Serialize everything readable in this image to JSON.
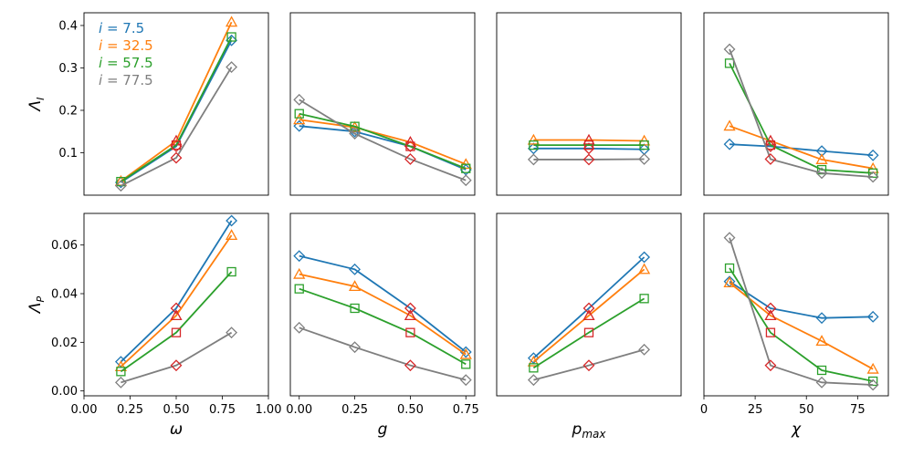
{
  "chart_data": {
    "type": "line",
    "legend": {
      "placement": "top-left",
      "entries": [
        {
          "var": "i",
          "eq": " = ",
          "value": "7.5",
          "color": "#1f77b4"
        },
        {
          "var": "i",
          "eq": " = ",
          "value": "32.5",
          "color": "#ff7f0e"
        },
        {
          "var": "i",
          "eq": " = ",
          "value": "57.5",
          "color": "#2ca02c"
        },
        {
          "var": "i",
          "eq": " = ",
          "value": "77.5",
          "color": "#7f7f7f"
        }
      ]
    },
    "highlight_color": "#d62728",
    "rows": [
      {
        "ylabel": "Λ",
        "ylabel_sub": "I",
        "ylim": [
          0.0,
          0.43
        ],
        "yticks": [
          "0.1",
          "0.2",
          "0.3",
          "0.4"
        ],
        "ytick_values": [
          0.1,
          0.2,
          0.3,
          0.4
        ]
      },
      {
        "ylabel": "Λ",
        "ylabel_sub": "P",
        "ylim": [
          -0.002,
          0.073
        ],
        "yticks": [
          "0.00",
          "0.02",
          "0.04",
          "0.06"
        ],
        "ytick_values": [
          0.0,
          0.02,
          0.04,
          0.06
        ]
      }
    ],
    "columns": [
      {
        "xlabel": "ω",
        "xlabel_sub": "",
        "xlim": [
          0.0,
          1.0
        ],
        "xticks": [
          "0.00",
          "0.25",
          "0.50",
          "0.75",
          "1.00"
        ],
        "xtick_values": [
          0.0,
          0.25,
          0.5,
          0.75,
          1.0
        ],
        "highlight_index": 1
      },
      {
        "xlabel": "g",
        "xlabel_sub": "",
        "xlim": [
          -0.04,
          0.79
        ],
        "xticks": [
          "0.00",
          "0.25",
          "0.50",
          "0.75"
        ],
        "xtick_values": [
          0.0,
          0.25,
          0.5,
          0.75
        ],
        "highlight_index": 2
      },
      {
        "xlabel": "p",
        "xlabel_sub": "max",
        "xlim": [
          0.0,
          1.0
        ],
        "xticks": [],
        "xtick_values": [],
        "highlight_index": 1
      },
      {
        "xlabel": "χ",
        "xlabel_sub": "",
        "xlim": [
          0,
          90
        ],
        "xticks": [
          "0",
          "25",
          "50",
          "75"
        ],
        "xtick_values": [
          0,
          25,
          50,
          75
        ],
        "highlight_index": 1
      }
    ],
    "panels": [
      {
        "row": 0,
        "col": 0,
        "x": [
          0.2,
          0.5,
          0.8
        ],
        "series": [
          {
            "values": [
              0.03,
              0.115,
              0.365
            ]
          },
          {
            "values": [
              0.033,
              0.128,
              0.408
            ]
          },
          {
            "values": [
              0.032,
              0.118,
              0.373
            ]
          },
          {
            "values": [
              0.022,
              0.088,
              0.302
            ]
          }
        ]
      },
      {
        "row": 0,
        "col": 1,
        "x": [
          0.0,
          0.25,
          0.5,
          0.75
        ],
        "series": [
          {
            "values": [
              0.163,
              0.15,
              0.115,
              0.06
            ]
          },
          {
            "values": [
              0.178,
              0.16,
              0.125,
              0.073
            ]
          },
          {
            "values": [
              0.192,
              0.162,
              0.115,
              0.063
            ]
          },
          {
            "values": [
              0.225,
              0.145,
              0.085,
              0.035
            ]
          }
        ]
      },
      {
        "row": 0,
        "col": 2,
        "x": [
          0.2,
          0.5,
          0.8
        ],
        "series": [
          {
            "values": [
              0.11,
              0.11,
              0.108
            ]
          },
          {
            "values": [
              0.13,
              0.13,
              0.128
            ]
          },
          {
            "values": [
              0.118,
              0.118,
              0.118
            ]
          },
          {
            "values": [
              0.084,
              0.084,
              0.085
            ]
          }
        ]
      },
      {
        "row": 0,
        "col": 3,
        "x": [
          12.5,
          32.5,
          57.5,
          82.5
        ],
        "series": [
          {
            "values": [
              0.12,
              0.115,
              0.104,
              0.094
            ]
          },
          {
            "values": [
              0.163,
              0.128,
              0.084,
              0.063
            ]
          },
          {
            "values": [
              0.311,
              0.118,
              0.06,
              0.052
            ]
          },
          {
            "values": [
              0.344,
              0.085,
              0.052,
              0.043
            ]
          }
        ]
      },
      {
        "row": 1,
        "col": 0,
        "x": [
          0.2,
          0.5,
          0.8
        ],
        "series": [
          {
            "values": [
              0.012,
              0.034,
              0.07
            ]
          },
          {
            "values": [
              0.01,
              0.031,
              0.064
            ]
          },
          {
            "values": [
              0.008,
              0.024,
              0.049
            ]
          },
          {
            "values": [
              0.0035,
              0.0105,
              0.024
            ]
          }
        ]
      },
      {
        "row": 1,
        "col": 1,
        "x": [
          0.0,
          0.25,
          0.5,
          0.75
        ],
        "series": [
          {
            "values": [
              0.0555,
              0.05,
              0.034,
              0.016
            ]
          },
          {
            "values": [
              0.048,
              0.043,
              0.031,
              0.015
            ]
          },
          {
            "values": [
              0.042,
              0.034,
              0.024,
              0.011
            ]
          },
          {
            "values": [
              0.026,
              0.018,
              0.0105,
              0.0045
            ]
          }
        ]
      },
      {
        "row": 1,
        "col": 2,
        "x": [
          0.2,
          0.5,
          0.8
        ],
        "series": [
          {
            "values": [
              0.0135,
              0.034,
              0.055
            ]
          },
          {
            "values": [
              0.012,
              0.031,
              0.05
            ]
          },
          {
            "values": [
              0.0095,
              0.024,
              0.038
            ]
          },
          {
            "values": [
              0.0045,
              0.0105,
              0.017
            ]
          }
        ]
      },
      {
        "row": 1,
        "col": 3,
        "x": [
          12.5,
          32.5,
          57.5,
          82.5
        ],
        "series": [
          {
            "values": [
              0.045,
              0.034,
              0.03,
              0.0305
            ]
          },
          {
            "values": [
              0.0445,
              0.031,
              0.0205,
              0.009
            ]
          },
          {
            "values": [
              0.0505,
              0.024,
              0.0085,
              0.004
            ]
          },
          {
            "values": [
              0.063,
              0.0105,
              0.0035,
              0.0025
            ]
          }
        ]
      }
    ]
  }
}
